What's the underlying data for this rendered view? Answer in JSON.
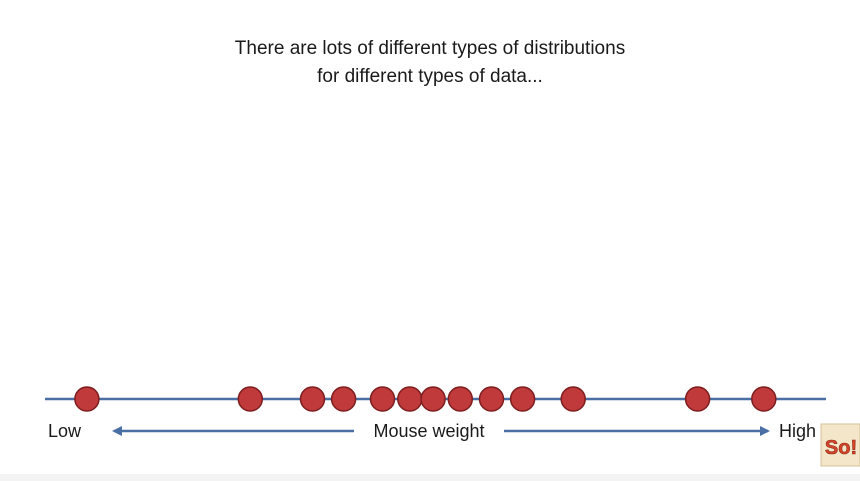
{
  "slide": {
    "title_lines": [
      "There are lots of different types of distributions",
      "for different types of data..."
    ]
  },
  "diagram": {
    "axis": {
      "low_label": "Low",
      "high_label": "High",
      "label": "Mouse weight"
    },
    "points": [
      0.05,
      0.26,
      0.34,
      0.38,
      0.43,
      0.465,
      0.495,
      0.53,
      0.57,
      0.61,
      0.675,
      0.835,
      0.92
    ],
    "colors": {
      "point_fill": "#c0393b",
      "point_stroke": "#7e1e1f",
      "line": "#4a6fa5",
      "arrow": "#4a6fa5"
    }
  },
  "logo": {
    "text": "So!"
  }
}
